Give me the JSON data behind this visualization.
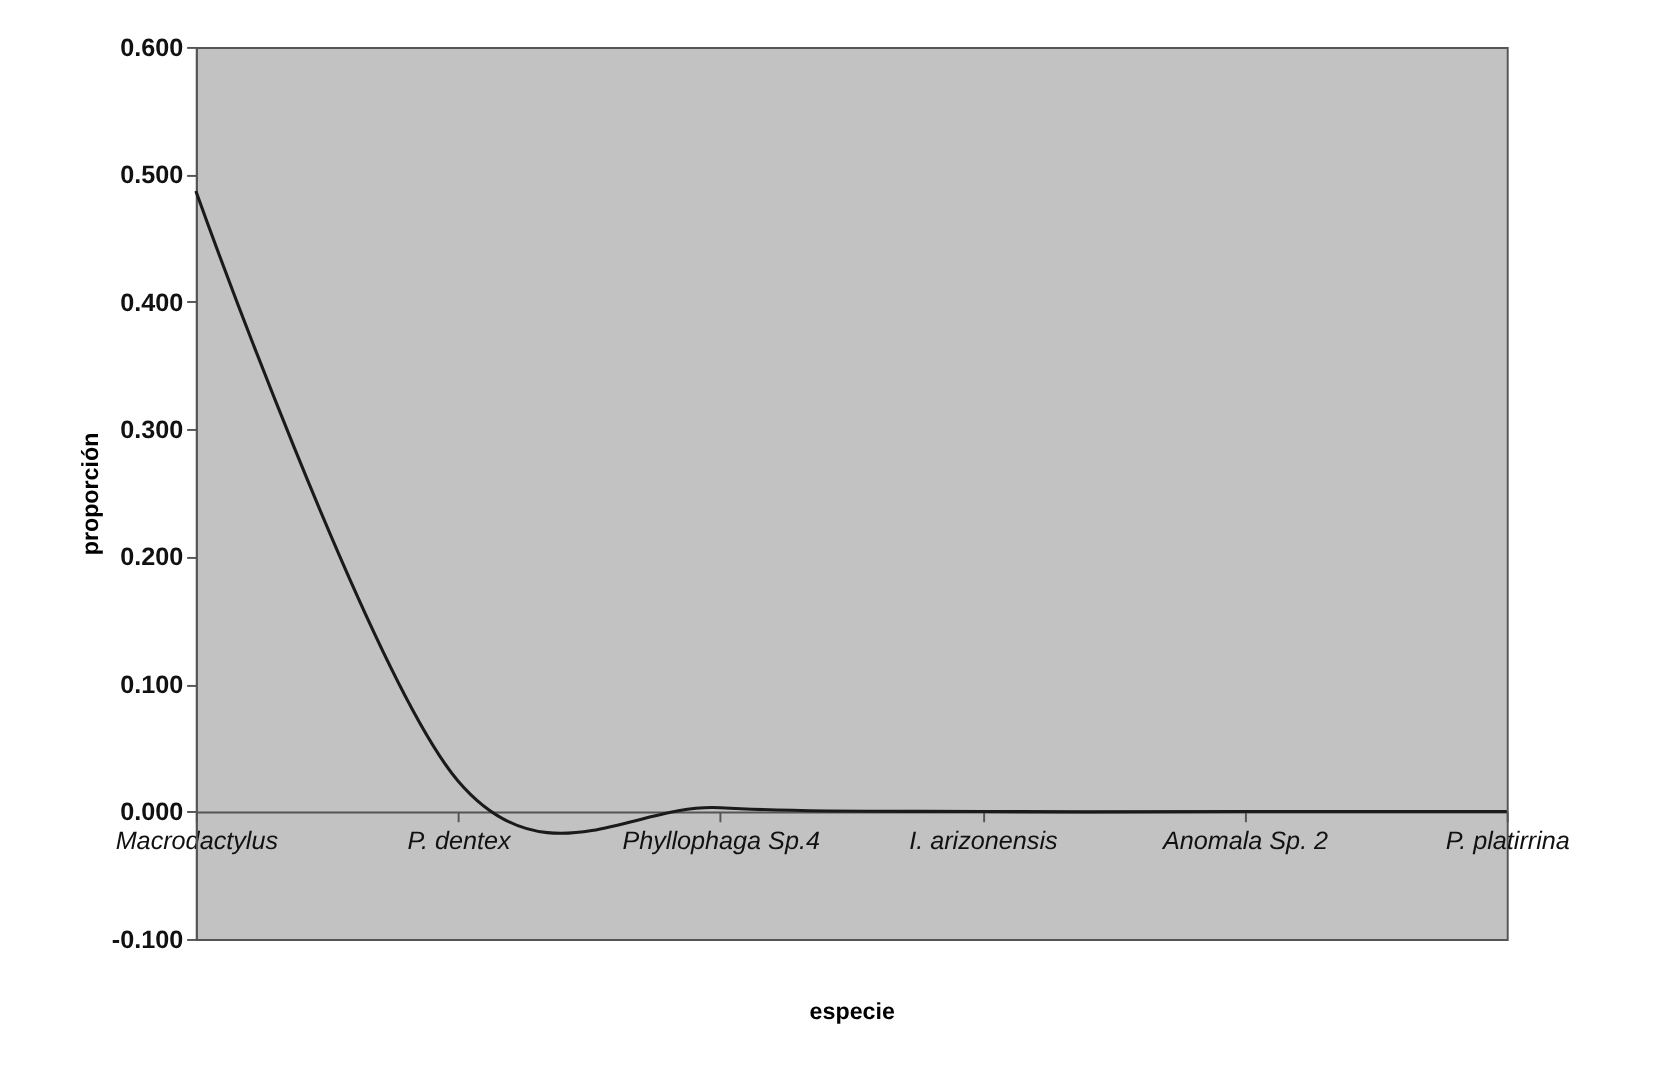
{
  "chart_data": {
    "type": "line",
    "xlabel": "especie",
    "ylabel": "proporción",
    "categories": [
      "Macrodactylus",
      "P. dentex",
      "Phyllophaga Sp.4",
      "I. arizonensis",
      "Anomala Sp. 2",
      "P. platirrina"
    ],
    "series": [
      {
        "color": "#1a1a1a",
        "values": [
          0.487,
          0.024,
          0.003,
          0.0,
          0.0,
          0.0
        ]
      }
    ],
    "ylim": [
      -0.1,
      0.6
    ],
    "yticks": [
      {
        "value": -0.1,
        "label": "-0.100"
      },
      {
        "value": 0,
        "label": "0.000"
      },
      {
        "value": 0.1,
        "label": "0.100"
      },
      {
        "value": 0.2,
        "label": "0.200"
      },
      {
        "value": 0.3,
        "label": "0.300"
      },
      {
        "value": 0.4,
        "label": "0.400"
      },
      {
        "value": 0.5,
        "label": "0.500"
      },
      {
        "value": 0.6,
        "label": "0.600"
      }
    ],
    "grid": false,
    "legend": false,
    "marker": "none",
    "line_style": "solid"
  }
}
